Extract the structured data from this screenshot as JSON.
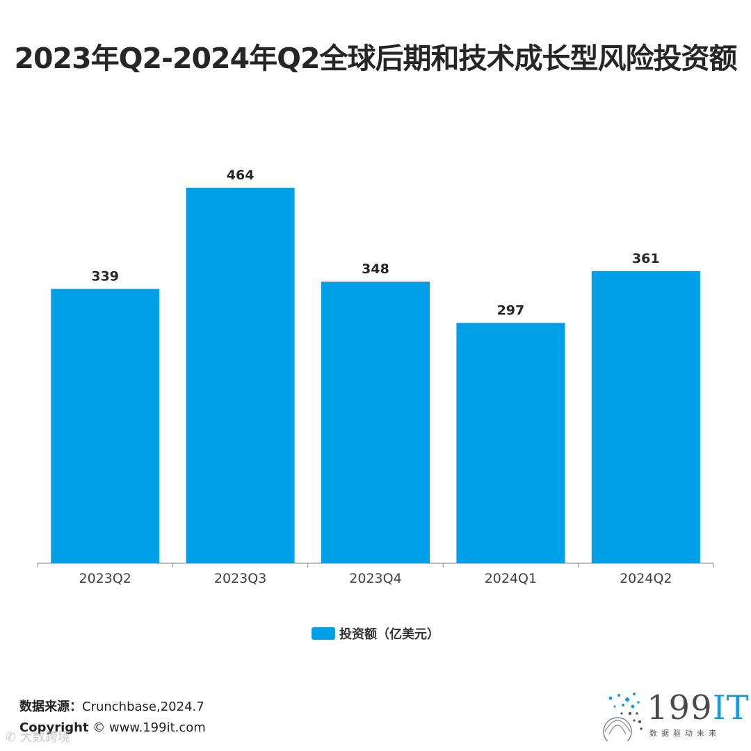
{
  "title": "2023年Q2-2024年Q2全球后期和技术成长型风险投资额",
  "chart_data": {
    "type": "bar",
    "title": "2023年Q2-2024年Q2全球后期和技术成长型风险投资额",
    "categories": [
      "2023Q2",
      "2023Q3",
      "2023Q4",
      "2024Q1",
      "2024Q2"
    ],
    "series": [
      {
        "name": "投资额（亿美元）",
        "values": [
          339,
          464,
          348,
          297,
          361
        ]
      }
    ],
    "data_labels": [
      "339",
      "464",
      "348",
      "297",
      "361"
    ],
    "ylim": [
      0,
      464
    ],
    "xlabel": "",
    "ylabel": "",
    "grid": false,
    "legend_position": "bottom",
    "bar_color": "#00a0e9"
  },
  "legend": {
    "label": "投资额（亿美元）",
    "color": "#00a0e9"
  },
  "footer": {
    "source_key": "数据来源：",
    "source_value": "Crunchbase,2024.7",
    "copyright_key": "Copyright",
    "copyright_value": " © www.199it.com",
    "watermark": "✆ 大数跨境"
  },
  "logo": {
    "main": "199",
    "accent": "IT",
    "sub": "数据驱动未来"
  }
}
